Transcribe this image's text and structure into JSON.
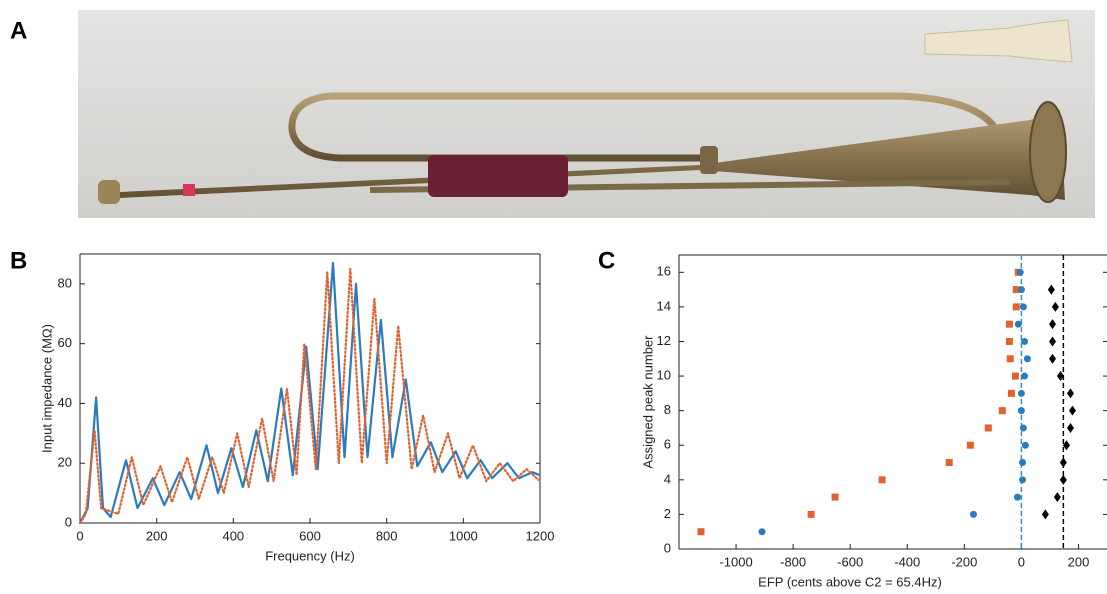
{
  "panel_labels": [
    "A",
    "B",
    "C"
  ],
  "chart_data": [
    {
      "type": "line",
      "xlabel": "Frequency (Hz)",
      "ylabel": "Input impedance (MΩ)",
      "xlim": [
        0,
        1200
      ],
      "ylim": [
        0,
        90
      ],
      "xticks": [
        0,
        200,
        400,
        600,
        800,
        1000,
        1200
      ],
      "yticks": [
        0,
        20,
        40,
        60,
        80
      ],
      "series": [
        {
          "color": "#2a7bbf",
          "style": "solid",
          "x": [
            0,
            20,
            42,
            60,
            80,
            120,
            150,
            190,
            220,
            260,
            290,
            330,
            360,
            395,
            425,
            460,
            490,
            525,
            555,
            590,
            620,
            660,
            690,
            720,
            750,
            785,
            815,
            850,
            880,
            915,
            945,
            980,
            1010,
            1045,
            1075,
            1115,
            1145,
            1180,
            1200
          ],
          "values": [
            0,
            5,
            42,
            5,
            2,
            21,
            5,
            15,
            6,
            17,
            8,
            26,
            10,
            25,
            12,
            31,
            14,
            45,
            16,
            59,
            18,
            87,
            22,
            80,
            22,
            68,
            22,
            48,
            19,
            27,
            17,
            24,
            15,
            21,
            15,
            20,
            15,
            17,
            16
          ]
        },
        {
          "color": "#e0622e",
          "style": "dotted",
          "x": [
            0,
            15,
            38,
            55,
            100,
            135,
            165,
            210,
            240,
            280,
            310,
            345,
            375,
            410,
            440,
            475,
            505,
            540,
            565,
            585,
            615,
            645,
            675,
            705,
            735,
            768,
            800,
            830,
            865,
            895,
            925,
            960,
            990,
            1025,
            1060,
            1095,
            1130,
            1165,
            1200
          ],
          "values": [
            0,
            3,
            31,
            5,
            3,
            22,
            6,
            19,
            7,
            22,
            8,
            22,
            10,
            30,
            12,
            35,
            14,
            45,
            16,
            60,
            18,
            84,
            20,
            85,
            20,
            75,
            20,
            66,
            18,
            36,
            17,
            30,
            15,
            26,
            14,
            20,
            14,
            18,
            14
          ]
        }
      ]
    },
    {
      "type": "scatter",
      "xlabel": "EFP (cents above C2 = 65.4Hz)",
      "ylabel": "Assigned peak number",
      "xlim": [
        -1200,
        300
      ],
      "ylim": [
        0,
        17
      ],
      "xticks": [
        -1000,
        -800,
        -600,
        -400,
        -200,
        0,
        200
      ],
      "yticks": [
        0,
        2,
        4,
        6,
        8,
        10,
        12,
        14,
        16
      ],
      "reference_lines": [
        {
          "x": 0,
          "color": "#2a8fd6"
        },
        {
          "x": 147,
          "color": "#000000"
        }
      ],
      "series": [
        {
          "color": "#e0622e",
          "marker": "square",
          "x": [
            -1123,
            -737,
            -653,
            -488,
            -253,
            -179,
            -116,
            -67,
            -35,
            -21,
            -39,
            -42,
            -42,
            -18,
            -18,
            -11
          ],
          "values": [
            1,
            2,
            3,
            4,
            5,
            6,
            7,
            8,
            9,
            10,
            11,
            12,
            13,
            14,
            15,
            16
          ]
        },
        {
          "color": "#2a7bbf",
          "marker": "circle",
          "x": [
            -909,
            -168,
            -14,
            4,
            4,
            14,
            7,
            0,
            0,
            11,
            21,
            11,
            -11,
            7,
            0,
            -4
          ],
          "values": [
            1,
            2,
            3,
            4,
            5,
            6,
            7,
            8,
            9,
            10,
            11,
            12,
            13,
            14,
            15,
            16
          ]
        },
        {
          "color": "#000000",
          "marker": "diamond",
          "x": [
            84,
            126,
            147,
            147,
            158,
            172,
            179,
            172,
            137,
            109,
            109,
            109,
            119,
            105
          ],
          "values": [
            2,
            3,
            4,
            5,
            6,
            7,
            8,
            9,
            10,
            11,
            12,
            13,
            14,
            15
          ]
        }
      ]
    }
  ]
}
